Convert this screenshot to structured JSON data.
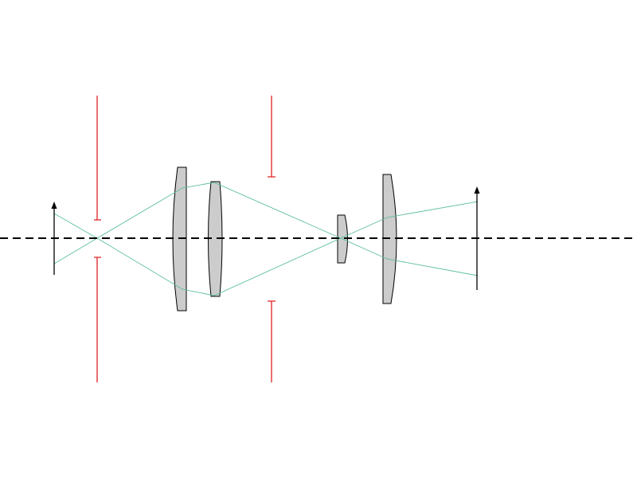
{
  "colors": {
    "background": "#ffffff",
    "lens_fill": "#cccccc",
    "lens_stroke": "#000000",
    "ray": "#5dbf9a",
    "aperture_stop": "#e02020",
    "optical_axis": "#000000",
    "arrows": "#000000"
  },
  "elements": {
    "object_arrow": "object-arrow",
    "image_arrow": "image-arrow",
    "optical_axis": "optical-axis",
    "lenses": [
      "lens-1",
      "lens-2",
      "lens-3",
      "lens-4"
    ],
    "aperture_stops": [
      "aperture-stop-1",
      "aperture-stop-2"
    ],
    "rays": [
      "ray-upper",
      "ray-lower"
    ]
  }
}
